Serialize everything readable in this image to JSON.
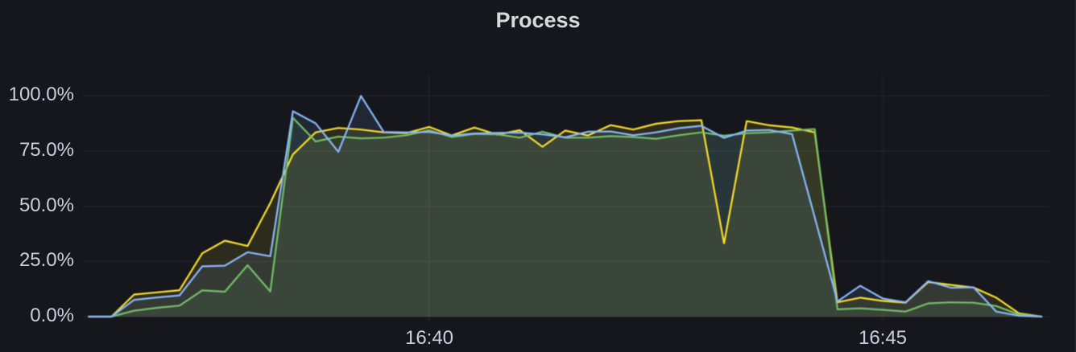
{
  "panel": {
    "title": "Process",
    "background_color": "#16171c",
    "text_color": "#ccccdc"
  },
  "y_axis": {
    "labels": [
      "100.0%",
      "75.0%",
      "50.0%",
      "25.0%",
      "0.0%"
    ],
    "values": [
      100,
      75,
      50,
      25,
      0
    ],
    "unit": "percent"
  },
  "x_axis": {
    "labels": [
      "16:40",
      "16:45"
    ],
    "tick_indices": [
      15,
      35
    ]
  },
  "chart_data": {
    "type": "area",
    "title": "Process",
    "xlabel": "",
    "ylabel": "",
    "ylim": [
      0,
      100
    ],
    "grid": true,
    "legend_position": "none",
    "x": [
      "16:36:15",
      "16:36:30",
      "16:36:45",
      "16:37:00",
      "16:37:15",
      "16:37:30",
      "16:37:45",
      "16:38:00",
      "16:38:15",
      "16:38:30",
      "16:38:45",
      "16:39:00",
      "16:39:15",
      "16:39:30",
      "16:39:45",
      "16:40:00",
      "16:40:15",
      "16:40:30",
      "16:40:45",
      "16:41:00",
      "16:41:15",
      "16:41:30",
      "16:41:45",
      "16:42:00",
      "16:42:15",
      "16:42:30",
      "16:42:45",
      "16:43:00",
      "16:43:15",
      "16:43:30",
      "16:43:45",
      "16:44:00",
      "16:44:15",
      "16:44:30",
      "16:44:45",
      "16:45:00",
      "16:45:15",
      "16:45:30",
      "16:45:45",
      "16:46:00",
      "16:46:15",
      "16:46:30",
      "16:46:45"
    ],
    "x_tick_labels": [
      "16:40",
      "16:45"
    ],
    "y_tick_labels": [
      "0.0%",
      "25.0%",
      "50.0%",
      "75.0%",
      "100.0%"
    ],
    "fill_opacity": 0.1,
    "line_width": 2.2,
    "series": [
      {
        "name": "yellow",
        "color": "#FADE2A",
        "values": [
          0,
          0,
          10,
          11,
          12,
          28.7,
          34.4,
          32,
          51.5,
          73.5,
          83.5,
          85.5,
          84.8,
          83.5,
          83.2,
          86,
          82.1,
          85.7,
          82.5,
          84.5,
          77,
          84.3,
          82.1,
          86.8,
          84.8,
          87.4,
          88.6,
          89,
          33.2,
          88.6,
          86.7,
          85.7,
          83.5,
          6.5,
          8.6,
          7.1,
          6.3,
          15.7,
          14.4,
          13.2,
          8.6,
          1.5,
          0
        ]
      },
      {
        "name": "green",
        "color": "#73BF69",
        "values": [
          0,
          0,
          2.7,
          4,
          5,
          11.9,
          11.3,
          23.3,
          11.4,
          90.1,
          79.4,
          81.6,
          80.8,
          81.1,
          82.2,
          84.5,
          81.4,
          82.8,
          82.6,
          81.1,
          83.8,
          81.1,
          81.1,
          81.8,
          81.4,
          80.6,
          82.2,
          83.5,
          82,
          83.1,
          83.5,
          84.3,
          85,
          3.3,
          3.8,
          3.1,
          2.3,
          6,
          6.5,
          6.3,
          4.8,
          1,
          0
        ]
      },
      {
        "name": "blue",
        "color": "#8AB8FF",
        "values": [
          0,
          0,
          7.6,
          8.7,
          9.6,
          22.8,
          23.1,
          29.2,
          27.4,
          93.1,
          87.6,
          74.7,
          100,
          83.7,
          83.5,
          83.7,
          82.1,
          83,
          83.3,
          83.4,
          82.6,
          81.3,
          83.8,
          83.9,
          82.2,
          83.5,
          85.4,
          86.5,
          81,
          84.3,
          84.6,
          82.7,
          45,
          6.9,
          14,
          8.2,
          6.5,
          16.1,
          13.1,
          13.3,
          2.3,
          0.4,
          0
        ]
      }
    ]
  }
}
